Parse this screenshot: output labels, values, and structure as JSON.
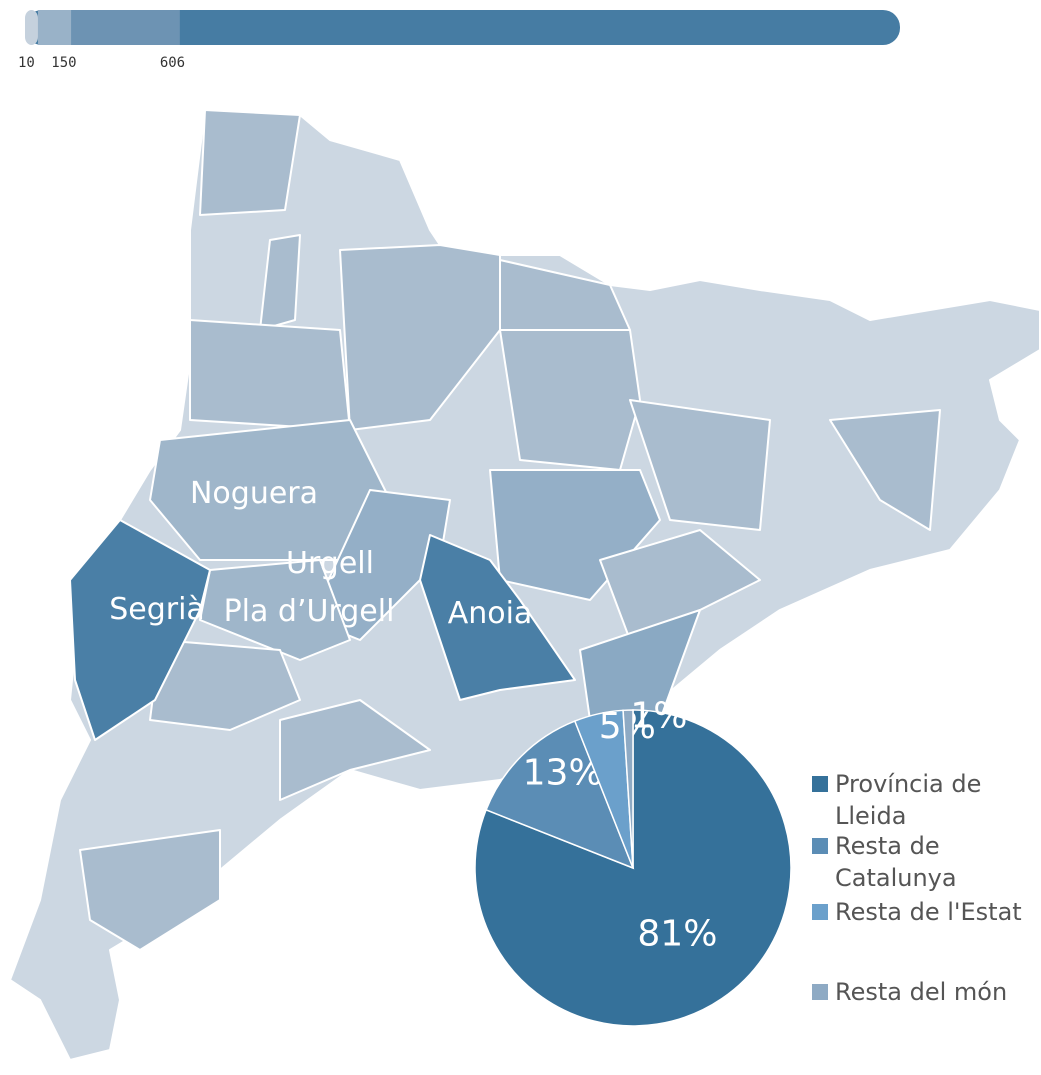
{
  "scale": {
    "ticks": [
      10,
      150,
      606
    ]
  },
  "regions": [
    "Noguera",
    "Urgell",
    "Segrià",
    "Pla d’Urgell",
    "Anoia"
  ],
  "chart_data": {
    "type": "pie",
    "series": [
      {
        "name": "Província de Lleida",
        "color": "#35719a",
        "value": 81
      },
      {
        "name": "Resta de Catalunya",
        "color": "#5b8db5",
        "value": 13
      },
      {
        "name": "Resta de l'Estat",
        "color": "#6ba0cb",
        "value": 5
      },
      {
        "name": "Resta del món",
        "color": "#8eaac4",
        "value": 1
      }
    ],
    "values": [
      81,
      13,
      5,
      1
    ],
    "value_labels": [
      "81%",
      "13%",
      "5%",
      "1%"
    ]
  }
}
